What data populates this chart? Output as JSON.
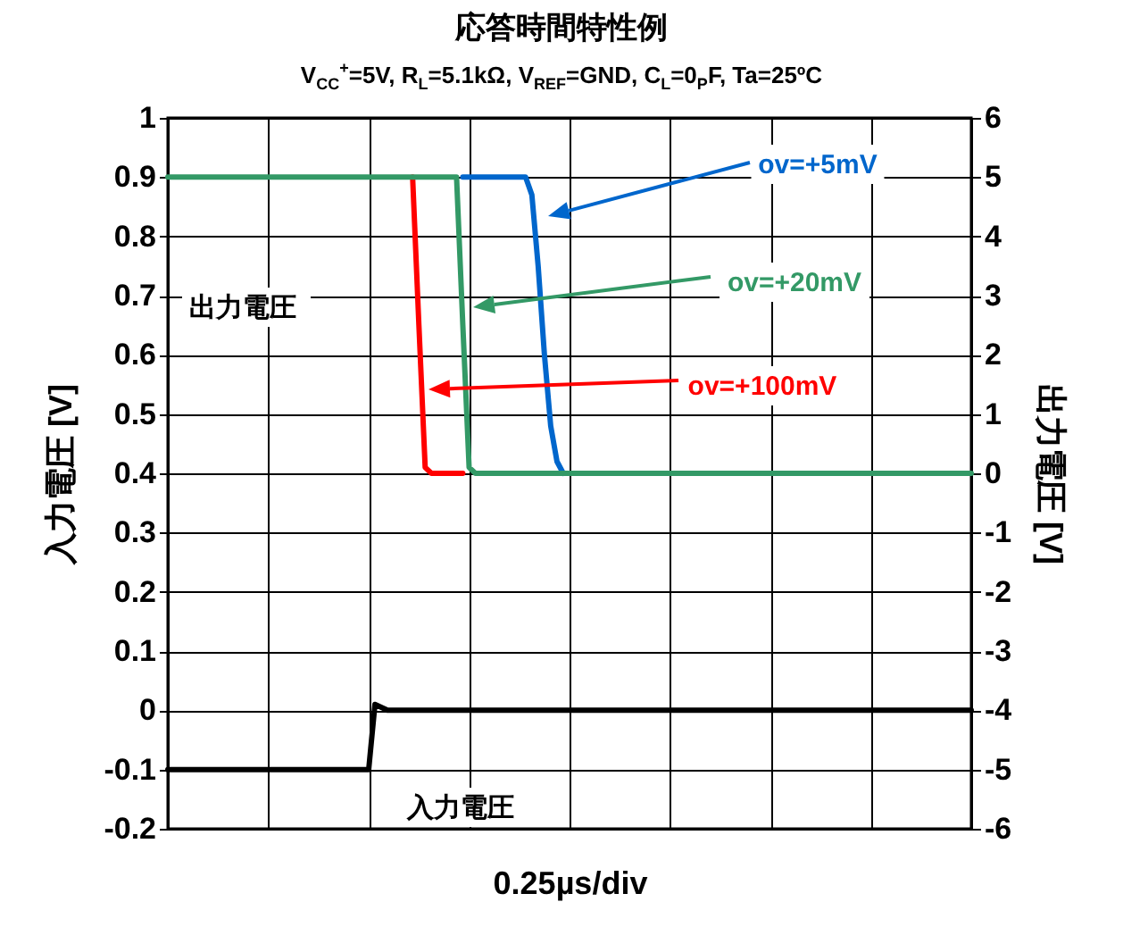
{
  "chart_data": {
    "type": "line",
    "title": "応答時間特性例",
    "subtitle": "V$_{CC}$$^{+}$=5V,  R$_{L}$=5.1kΩ,  V$_{REF}$=GND,  C$_{L}$=0$_{P}$F, Ta=25ºC",
    "xlabel": "0.25µs/div",
    "ylabel": "入力電圧 [V]",
    "y2label": "出力電圧 [V]",
    "annotations": [
      "出力電圧",
      "入力電圧"
    ],
    "categories": [
      null,
      null,
      null,
      null,
      null,
      null,
      null,
      null,
      null,
      null,
      null,
      null,
      null,
      null,
      null,
      null,
      null,
      null,
      null,
      null,
      null,
      null,
      null,
      null,
      null,
      null,
      null,
      null,
      null,
      null,
      null,
      null,
      null,
      null,
      null,
      null,
      null,
      null,
      null,
      null,
      null,
      null,
      null,
      null,
      null,
      null,
      null,
      null,
      null,
      null,
      null,
      null,
      null,
      null,
      null,
      null,
      null,
      null,
      null,
      null,
      null,
      null,
      null,
      null,
      null,
      null,
      null,
      null,
      null,
      null,
      null,
      null,
      null,
      null,
      null,
      null,
      null,
      null,
      null,
      null,
      null,
      null,
      null,
      null,
      null,
      null,
      null,
      null,
      null,
      null,
      null,
      null,
      null,
      null,
      null,
      null,
      null,
      null,
      null,
      null,
      null,
      null,
      null,
      null,
      null,
      null,
      null,
      null,
      null,
      null,
      null,
      null,
      null,
      null,
      null,
      null,
      null,
      null,
      null,
      null,
      null,
      null,
      null,
      null,
      null,
      null,
      null,
      null,
      null
    ],
    "series": [
      {
        "name": "ov=+100mV",
        "color": "#ff0000",
        "axis": "y2",
        "values": [
          null,
          null,
          null,
          null,
          null,
          null,
          null,
          null,
          null,
          null,
          null,
          null,
          null,
          null,
          null,
          null,
          null,
          null,
          null,
          null,
          null,
          null,
          null,
          null,
          null,
          null,
          null,
          null,
          null,
          null,
          null,
          null,
          null,
          null,
          null,
          null,
          null,
          null,
          null,
          5,
          2.5,
          0.1,
          0,
          0,
          0,
          0,
          0,
          0,
          null,
          null,
          null,
          null,
          null,
          null,
          null,
          null,
          null,
          null,
          null,
          null,
          null,
          null,
          null,
          null,
          null,
          null,
          null,
          null,
          null,
          null,
          null,
          null,
          null,
          null,
          null,
          null,
          null,
          null,
          null,
          null,
          null,
          null,
          null,
          null,
          null,
          null,
          null,
          null,
          null,
          null,
          null,
          null,
          null,
          null,
          null,
          null,
          null,
          null,
          null,
          null,
          null,
          null,
          null,
          null,
          null,
          null,
          null,
          null,
          null,
          null,
          null,
          null,
          null,
          null,
          null,
          null,
          null,
          null,
          null,
          null,
          null,
          null,
          null,
          null,
          null,
          null,
          null,
          null,
          null
        ]
      },
      {
        "name": "ov=+5mV",
        "color": "#0066cc",
        "axis": "y2",
        "values": [
          null,
          null,
          null,
          null,
          null,
          null,
          null,
          null,
          null,
          null,
          null,
          null,
          null,
          null,
          null,
          null,
          null,
          null,
          null,
          null,
          null,
          null,
          null,
          null,
          null,
          null,
          null,
          null,
          null,
          null,
          null,
          null,
          null,
          null,
          null,
          null,
          null,
          null,
          null,
          null,
          null,
          null,
          null,
          null,
          null,
          null,
          null,
          5,
          5,
          5,
          5,
          5,
          5,
          5,
          5,
          5,
          5,
          5,
          4.7,
          3.5,
          2,
          0.8,
          0.2,
          0,
          null,
          null,
          null,
          null,
          null,
          null,
          null,
          null,
          null,
          null,
          null,
          null,
          null,
          null,
          null,
          null,
          null,
          null,
          null,
          null,
          null,
          null,
          null,
          null,
          null,
          null,
          null,
          null,
          null,
          null,
          null,
          null,
          null,
          null,
          null,
          null,
          null,
          null,
          null,
          null,
          null,
          null,
          null,
          null,
          null,
          null,
          null,
          null,
          null,
          null,
          null,
          null,
          null,
          null,
          null,
          null,
          null,
          null,
          null,
          null,
          null,
          null,
          null,
          null,
          null
        ]
      },
      {
        "name": "ov=+20mV",
        "color": "#339966",
        "axis": "y2",
        "values": [
          5,
          5,
          5,
          5,
          5,
          5,
          5,
          5,
          5,
          5,
          5,
          5,
          5,
          5,
          5,
          5,
          5,
          5,
          5,
          5,
          5,
          5,
          5,
          5,
          5,
          5,
          5,
          5,
          5,
          5,
          5,
          5,
          5,
          5,
          5,
          5,
          5,
          5,
          5,
          5,
          5,
          5,
          5,
          5,
          5,
          5,
          5,
          2.5,
          0.1,
          0,
          0,
          0,
          0,
          0,
          0,
          0,
          0,
          0,
          0,
          0,
          0,
          0,
          0,
          0,
          0,
          0,
          0,
          0,
          0,
          0,
          0,
          0,
          0,
          0,
          0,
          0,
          0,
          0,
          0,
          0,
          0,
          0,
          0,
          0,
          0,
          0,
          0,
          0,
          0,
          0,
          0,
          0,
          0,
          0,
          0,
          0,
          0,
          0,
          0,
          0,
          0,
          0,
          0,
          0,
          0,
          0,
          0,
          0,
          0,
          0,
          0,
          0,
          0,
          0,
          0,
          0,
          0,
          0,
          0,
          0,
          0,
          0,
          0,
          0,
          0,
          0,
          0,
          0,
          0
        ]
      },
      {
        "color": "#000000",
        "values": [
          -0.1,
          -0.1,
          -0.1,
          -0.1,
          -0.1,
          -0.1,
          -0.1,
          -0.1,
          -0.1,
          -0.1,
          -0.1,
          -0.1,
          -0.1,
          -0.1,
          -0.1,
          -0.1,
          -0.1,
          -0.1,
          -0.1,
          -0.1,
          -0.1,
          -0.1,
          -0.1,
          -0.1,
          -0.1,
          -0.1,
          -0.1,
          -0.1,
          -0.1,
          -0.1,
          -0.1,
          -0.1,
          -0.1,
          0.01,
          0.005,
          0,
          0,
          0,
          0,
          0,
          0,
          0,
          0,
          0,
          0,
          0,
          0,
          0,
          0,
          0,
          0,
          0,
          0,
          0,
          0,
          0,
          0,
          0,
          0,
          0,
          0,
          0,
          0,
          0,
          0,
          0,
          0,
          0,
          0,
          0,
          0,
          0,
          0,
          0,
          0,
          0,
          0,
          0,
          0,
          0,
          0,
          0,
          0,
          0,
          0,
          0,
          0,
          0,
          0,
          0,
          0,
          0,
          0,
          0,
          0,
          0,
          0,
          0,
          0,
          0,
          0,
          0,
          0,
          0,
          0,
          0,
          0,
          0,
          0,
          0,
          0,
          0,
          0,
          0,
          0,
          0,
          0,
          0,
          0,
          0,
          0,
          0,
          0,
          0,
          0,
          0,
          0,
          0,
          0
        ]
      }
    ],
    "ylim": [
      -0.2,
      1
    ],
    "yticks": [
      -0.2,
      -0.1,
      0,
      0.1,
      0.2,
      0.3,
      0.4,
      0.5,
      0.6,
      0.7,
      0.8,
      0.9,
      1
    ],
    "y2lim": [
      -6,
      6
    ],
    "y2ticks": [
      -6,
      -5,
      -4,
      -3,
      -2,
      -1,
      0,
      1,
      2,
      3,
      4,
      5,
      6
    ],
    "grid": true
  }
}
